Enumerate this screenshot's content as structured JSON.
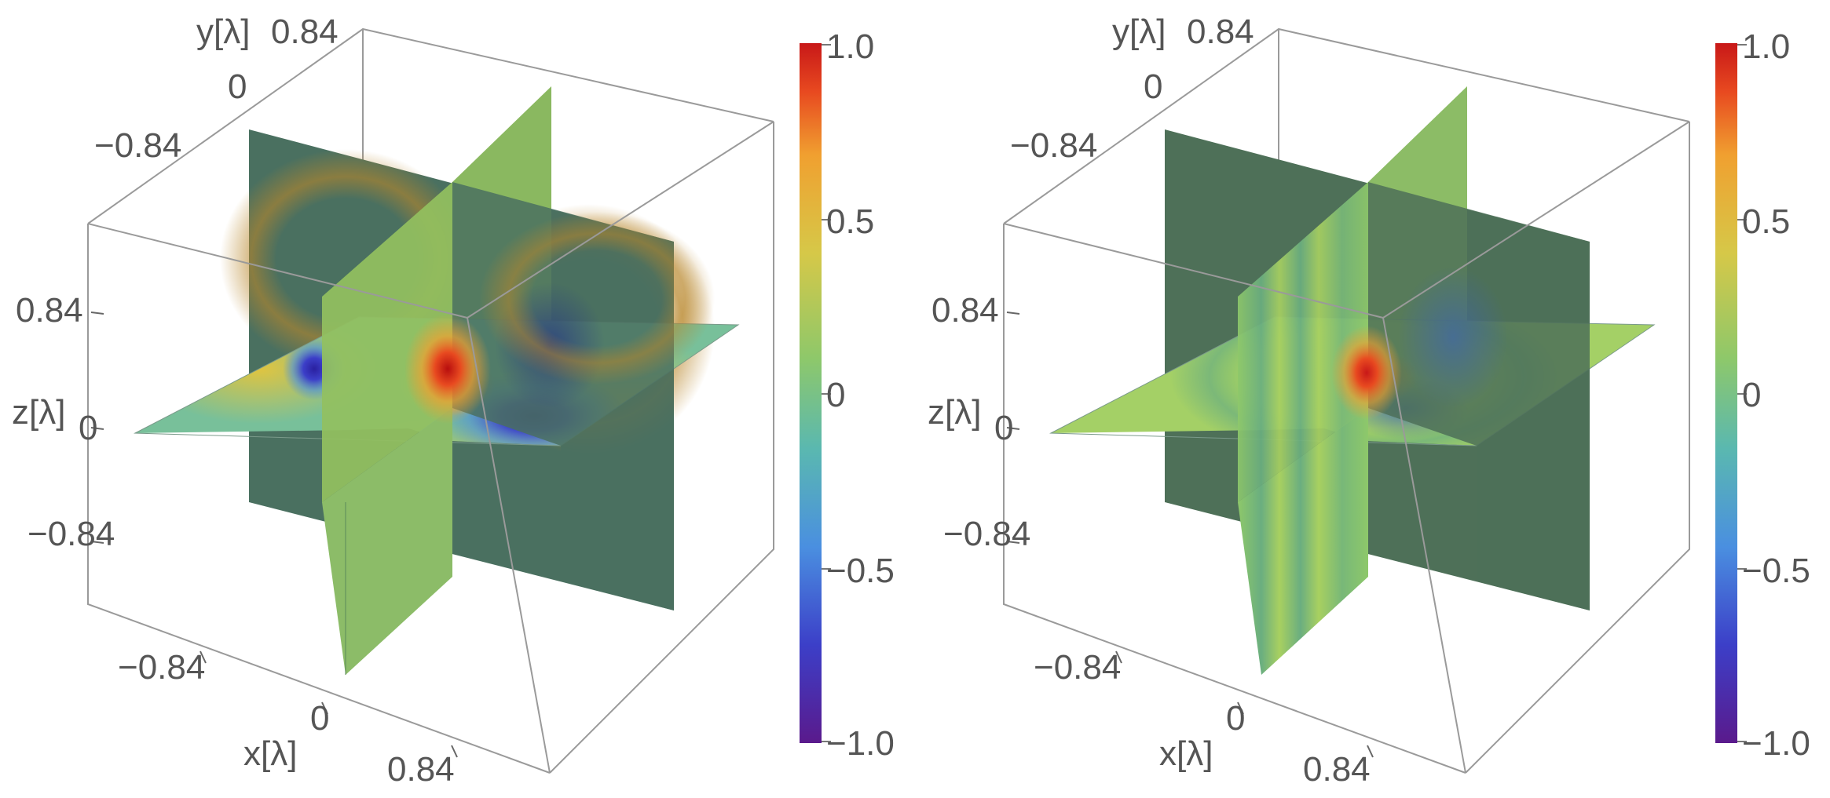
{
  "chart_data": [
    {
      "type": "heatmap",
      "variant": "3d-slice-density",
      "xlabel": "x[λ]",
      "ylabel": "y[λ]",
      "zlabel": "z[λ]",
      "xlim": [
        -0.84,
        0.84
      ],
      "ylim": [
        -0.84,
        0.84
      ],
      "zlim": [
        -0.84,
        0.84
      ],
      "x_ticks": [
        "−0.84",
        "0",
        "0.84"
      ],
      "y_ticks": [
        "−0.84",
        "0",
        "0.84"
      ],
      "z_ticks": [
        "−0.84",
        "0",
        "0.84"
      ],
      "slices": [
        "x=0",
        "y=0",
        "z=0"
      ],
      "colorbar": {
        "min": -1.0,
        "max": 1.0,
        "ticks": [
          "1.0",
          "0.5",
          "0",
          "−0.5",
          "−1.0"
        ]
      },
      "features": {
        "max_value": 1.0,
        "min_value": -1.0,
        "description_pattern": "strong dipole lobe near origin with negative lobe offset toward +x"
      }
    },
    {
      "type": "heatmap",
      "variant": "3d-slice-density",
      "xlabel": "x[λ]",
      "ylabel": "y[λ]",
      "zlabel": "z[λ]",
      "xlim": [
        -0.84,
        0.84
      ],
      "ylim": [
        -0.84,
        0.84
      ],
      "zlim": [
        -0.84,
        0.84
      ],
      "x_ticks": [
        "−0.84",
        "0",
        "0.84"
      ],
      "y_ticks": [
        "−0.84",
        "0",
        "0.84"
      ],
      "z_ticks": [
        "−0.84",
        "0",
        "0.84"
      ],
      "slices": [
        "x=0",
        "y=0",
        "z=0"
      ],
      "colorbar": {
        "min": -1.0,
        "max": 1.0,
        "ticks": [
          "1.0",
          "0.5",
          "0",
          "−0.5",
          "−1.0"
        ]
      },
      "features": {
        "max_value": 1.0,
        "min_value": -0.5,
        "description_pattern": "weaker localized lobe near origin with ring fringes"
      }
    }
  ],
  "colormap": [
    "#5a1a8c",
    "#3c3fc8",
    "#4a8fe0",
    "#5ab8b0",
    "#8ec86a",
    "#d6c848",
    "#f0a030",
    "#e84a20",
    "#c81818"
  ]
}
